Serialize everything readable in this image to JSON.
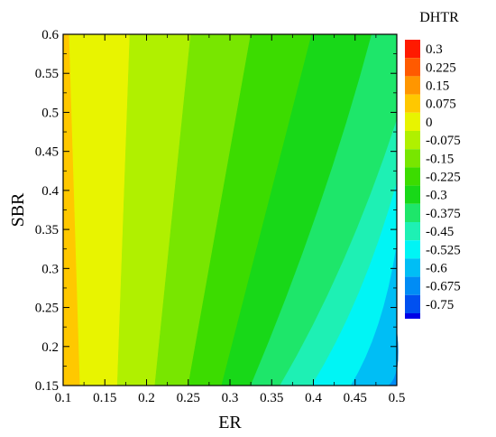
{
  "chart_data": {
    "type": "contour",
    "xlabel": "ER",
    "ylabel": "SBR",
    "legend_title": "DHTR",
    "xlim": [
      0.1,
      0.5
    ],
    "ylim": [
      0.15,
      0.6
    ],
    "x_ticks": [
      "0.1",
      "0.15",
      "0.2",
      "0.25",
      "0.3",
      "0.35",
      "0.4",
      "0.45",
      "0.5"
    ],
    "y_ticks": [
      "0.15",
      "0.2",
      "0.25",
      "0.3",
      "0.35",
      "0.4",
      "0.45",
      "0.5",
      "0.55",
      "0.6"
    ],
    "legend_placement": "right",
    "levels": [
      {
        "label": "0.3",
        "color": "#ff1a00"
      },
      {
        "label": "0.225",
        "color": "#ff5a00"
      },
      {
        "label": "0.15",
        "color": "#ff9600"
      },
      {
        "label": "0.075",
        "color": "#ffc800"
      },
      {
        "label": "0",
        "color": "#e8f400"
      },
      {
        "label": "-0.075",
        "color": "#b0f000"
      },
      {
        "label": "-0.15",
        "color": "#78e600"
      },
      {
        "label": "-0.225",
        "color": "#3cdc00"
      },
      {
        "label": "-0.3",
        "color": "#18d818"
      },
      {
        "label": "-0.375",
        "color": "#1ee66a"
      },
      {
        "label": "-0.45",
        "color": "#1ef0b4"
      },
      {
        "label": "-0.525",
        "color": "#00f5f5"
      },
      {
        "label": "-0.6",
        "color": "#00bef5"
      },
      {
        "label": "-0.675",
        "color": "#008cf5"
      },
      {
        "label": "-0.75",
        "color": "#0050f0"
      }
    ],
    "bottom_swatch_color": "#0000e6",
    "contour_bands": [
      {
        "range": "0.075 to 0.15",
        "color": "#ffc800",
        "bottom": [
          0.1,
          0.12
        ],
        "top": [
          0.1,
          0.107
        ]
      },
      {
        "range": "0 to 0.075",
        "color": "#e8f400",
        "bottom": [
          0.12,
          0.165
        ],
        "top": [
          0.107,
          0.18
        ]
      },
      {
        "range": "-0.075 to 0",
        "color": "#b0f000",
        "bottom": [
          0.165,
          0.21
        ],
        "top": [
          0.18,
          0.253
        ]
      },
      {
        "range": "-0.15 to -0.075",
        "color": "#78e600",
        "bottom": [
          0.21,
          0.25
        ],
        "top": [
          0.253,
          0.325
        ]
      },
      {
        "range": "-0.225 to -0.15",
        "color": "#3cdc00",
        "bottom": [
          0.25,
          0.29
        ],
        "top": [
          0.325,
          0.398
        ]
      },
      {
        "range": "-0.3 to -0.225",
        "color": "#18d818",
        "bottom": [
          0.29,
          0.325
        ],
        "top": [
          0.398,
          0.47
        ]
      },
      {
        "range": "-0.375 to -0.3",
        "color": "#1ee66a",
        "bottom": [
          0.325,
          0.36
        ],
        "top": [
          0.47,
          0.5
        ]
      },
      {
        "range": "-0.45 to -0.375",
        "color": "#1ef0b4",
        "bottom": [
          0.36,
          0.398
        ],
        "top": null
      },
      {
        "range": "-0.525 to -0.45",
        "color": "#00f5f5",
        "bottom": [
          0.398,
          0.445
        ],
        "top": null
      },
      {
        "range": "-0.6 to -0.525",
        "color": "#00bef5",
        "bottom": [
          0.445,
          0.49
        ],
        "top": null
      },
      {
        "range": "-0.675 to -0.6",
        "color": "#008cf5",
        "bottom": [
          0.49,
          0.5
        ],
        "top": null
      }
    ]
  }
}
